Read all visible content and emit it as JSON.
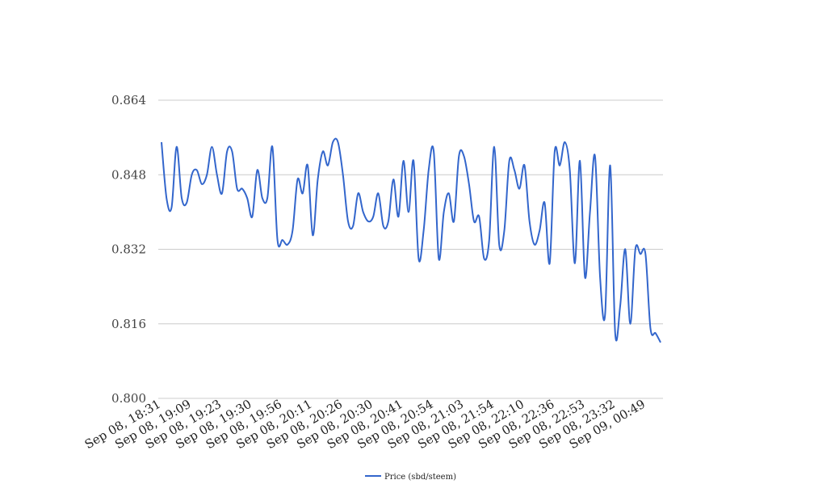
{
  "chart_data": {
    "type": "line",
    "title": "",
    "xlabel": "",
    "ylabel": "",
    "ylim": [
      0.8,
      0.864
    ],
    "y_ticks": [
      "0.800",
      "0.816",
      "0.832",
      "0.848",
      "0.864"
    ],
    "x_tick_labels": [
      "Sep 08, 18:31",
      "Sep 08, 19:09",
      "Sep 08, 19:23",
      "Sep 08, 19:30",
      "Sep 08, 19:56",
      "Sep 08, 20:11",
      "Sep 08, 20:26",
      "Sep 08, 20:30",
      "Sep 08, 20:41",
      "Sep 08, 20:54",
      "Sep 08, 21:03",
      "Sep 08, 21:54",
      "Sep 08, 22:10",
      "Sep 08, 22:36",
      "Sep 08, 22:53",
      "Sep 08, 23:32",
      "Sep 09, 00:49"
    ],
    "grid": true,
    "legend_position": "bottom",
    "series": [
      {
        "name": "Price (sbd/steem)",
        "color": "#3366cc",
        "values": [
          0.855,
          0.843,
          0.841,
          0.854,
          0.843,
          0.842,
          0.848,
          0.849,
          0.846,
          0.848,
          0.854,
          0.848,
          0.844,
          0.853,
          0.853,
          0.845,
          0.845,
          0.843,
          0.839,
          0.849,
          0.843,
          0.843,
          0.854,
          0.834,
          0.834,
          0.833,
          0.836,
          0.847,
          0.844,
          0.85,
          0.835,
          0.847,
          0.853,
          0.85,
          0.855,
          0.855,
          0.848,
          0.838,
          0.837,
          0.844,
          0.84,
          0.838,
          0.839,
          0.844,
          0.837,
          0.838,
          0.847,
          0.839,
          0.851,
          0.84,
          0.851,
          0.83,
          0.836,
          0.849,
          0.853,
          0.83,
          0.84,
          0.844,
          0.838,
          0.852,
          0.852,
          0.846,
          0.838,
          0.839,
          0.83,
          0.834,
          0.854,
          0.833,
          0.836,
          0.851,
          0.849,
          0.845,
          0.85,
          0.838,
          0.833,
          0.836,
          0.842,
          0.829,
          0.853,
          0.85,
          0.855,
          0.849,
          0.829,
          0.851,
          0.826,
          0.84,
          0.852,
          0.826,
          0.818,
          0.85,
          0.814,
          0.82,
          0.832,
          0.816,
          0.832,
          0.831,
          0.831,
          0.815,
          0.814,
          0.812
        ]
      }
    ]
  }
}
